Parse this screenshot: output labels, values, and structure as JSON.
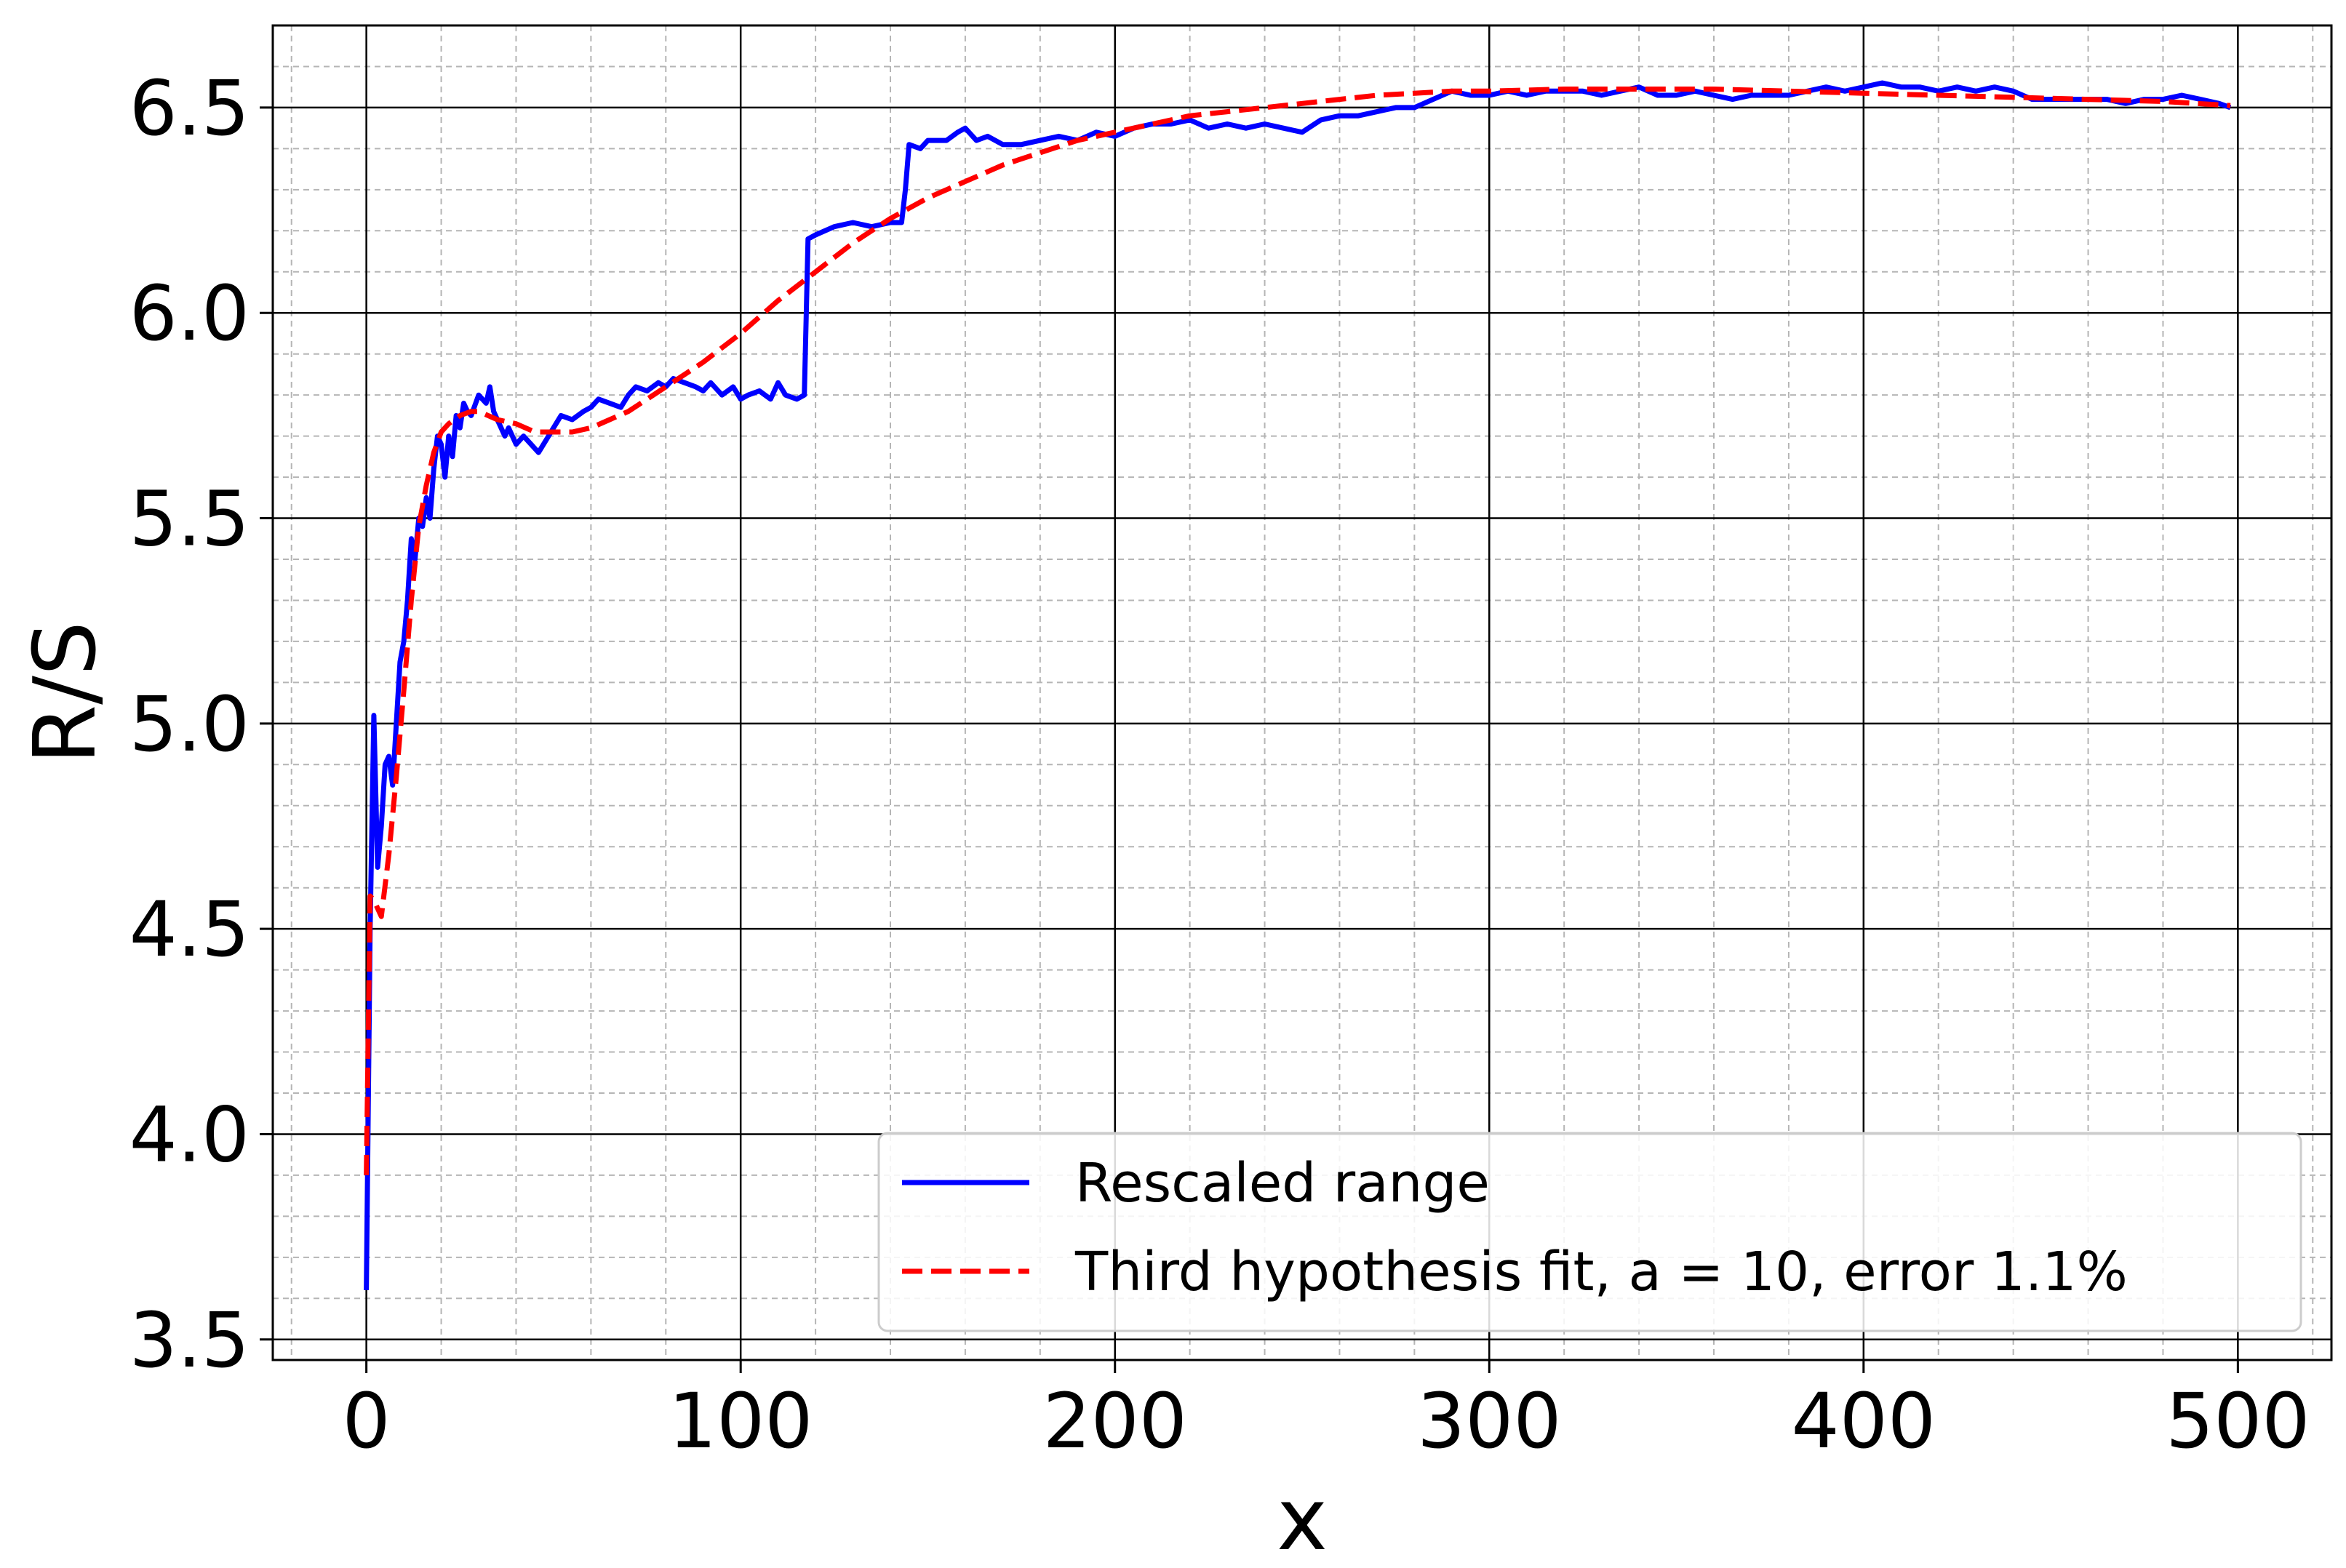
{
  "chart_data": {
    "type": "line",
    "xlabel": "x",
    "ylabel": "R/S",
    "xlim": [
      -25,
      525
    ],
    "ylim": [
      3.45,
      6.7
    ],
    "xticks": [
      0,
      100,
      200,
      300,
      400,
      500
    ],
    "xtick_labels": [
      "0",
      "100",
      "200",
      "300",
      "400",
      "500"
    ],
    "yticks": [
      3.5,
      4.0,
      4.5,
      5.0,
      5.5,
      6.0,
      6.5
    ],
    "ytick_labels": [
      "3.5",
      "4.0",
      "4.5",
      "5.0",
      "5.5",
      "6.0",
      "6.5"
    ],
    "grid": {
      "major": true,
      "minor": true
    },
    "legend_position": "lower-right",
    "series": [
      {
        "name": "Rescaled range",
        "color": "#0000ff",
        "style": "solid",
        "x": [
          0,
          1,
          2,
          3,
          4,
          5,
          6,
          7,
          8,
          9,
          10,
          11,
          12,
          13,
          14,
          15,
          16,
          17,
          18,
          19,
          20,
          21,
          22,
          23,
          24,
          25,
          26,
          27,
          28,
          30,
          32,
          33,
          34,
          35,
          37,
          38,
          40,
          42,
          44,
          46,
          48,
          50,
          52,
          55,
          58,
          60,
          62,
          65,
          68,
          70,
          72,
          75,
          78,
          80,
          82,
          85,
          88,
          90,
          92,
          95,
          98,
          100,
          102,
          105,
          108,
          110,
          112,
          115,
          117,
          118,
          120,
          125,
          130,
          135,
          140,
          143,
          144,
          145,
          148,
          150,
          155,
          158,
          160,
          163,
          166,
          170,
          175,
          180,
          185,
          190,
          195,
          200,
          205,
          210,
          215,
          220,
          225,
          230,
          235,
          240,
          245,
          250,
          255,
          260,
          265,
          270,
          275,
          280,
          285,
          290,
          295,
          300,
          305,
          310,
          315,
          320,
          325,
          330,
          335,
          340,
          345,
          350,
          355,
          360,
          365,
          370,
          375,
          380,
          385,
          390,
          395,
          400,
          405,
          410,
          415,
          420,
          425,
          430,
          435,
          440,
          445,
          450,
          455,
          460,
          465,
          470,
          475,
          480,
          485,
          490,
          495,
          498
        ],
        "y": [
          3.62,
          4.5,
          5.02,
          4.65,
          4.75,
          4.9,
          4.92,
          4.85,
          5.0,
          5.15,
          5.2,
          5.3,
          5.45,
          5.4,
          5.5,
          5.48,
          5.55,
          5.5,
          5.62,
          5.7,
          5.68,
          5.6,
          5.7,
          5.65,
          5.75,
          5.72,
          5.78,
          5.76,
          5.75,
          5.8,
          5.78,
          5.82,
          5.76,
          5.74,
          5.7,
          5.72,
          5.68,
          5.7,
          5.68,
          5.66,
          5.69,
          5.72,
          5.75,
          5.74,
          5.76,
          5.77,
          5.79,
          5.78,
          5.77,
          5.8,
          5.82,
          5.81,
          5.83,
          5.82,
          5.84,
          5.83,
          5.82,
          5.81,
          5.83,
          5.8,
          5.82,
          5.79,
          5.8,
          5.81,
          5.79,
          5.83,
          5.8,
          5.79,
          5.8,
          6.18,
          6.19,
          6.21,
          6.22,
          6.21,
          6.22,
          6.22,
          6.3,
          6.41,
          6.4,
          6.42,
          6.42,
          6.44,
          6.45,
          6.42,
          6.43,
          6.41,
          6.41,
          6.42,
          6.43,
          6.42,
          6.44,
          6.43,
          6.45,
          6.46,
          6.46,
          6.47,
          6.45,
          6.46,
          6.45,
          6.46,
          6.45,
          6.44,
          6.47,
          6.48,
          6.48,
          6.49,
          6.5,
          6.5,
          6.52,
          6.54,
          6.53,
          6.53,
          6.54,
          6.53,
          6.54,
          6.54,
          6.54,
          6.53,
          6.54,
          6.55,
          6.53,
          6.53,
          6.54,
          6.53,
          6.52,
          6.53,
          6.53,
          6.53,
          6.54,
          6.55,
          6.54,
          6.55,
          6.56,
          6.55,
          6.55,
          6.54,
          6.55,
          6.54,
          6.55,
          6.54,
          6.52,
          6.52,
          6.52,
          6.52,
          6.52,
          6.51,
          6.52,
          6.52,
          6.53,
          6.52,
          6.51,
          6.5
        ],
        "stroke": "#0000ff"
      },
      {
        "name": "Third hypothesis fit, a = 10, error 1.1%",
        "color": "#ff0000",
        "style": "dashed",
        "x": [
          0,
          1,
          2,
          4,
          6,
          8,
          10,
          12,
          14,
          16,
          18,
          20,
          22,
          25,
          28,
          30,
          35,
          40,
          45,
          50,
          55,
          60,
          65,
          70,
          80,
          90,
          100,
          110,
          120,
          130,
          140,
          150,
          160,
          170,
          180,
          190,
          200,
          210,
          220,
          230,
          240,
          250,
          260,
          270,
          280,
          290,
          300,
          320,
          340,
          360,
          380,
          400,
          420,
          440,
          460,
          480,
          498
        ],
        "y": [
          3.9,
          4.58,
          4.57,
          4.53,
          4.68,
          4.87,
          5.08,
          5.3,
          5.48,
          5.58,
          5.66,
          5.71,
          5.73,
          5.75,
          5.76,
          5.76,
          5.74,
          5.73,
          5.71,
          5.71,
          5.71,
          5.72,
          5.74,
          5.76,
          5.82,
          5.88,
          5.95,
          6.03,
          6.1,
          6.17,
          6.23,
          6.28,
          6.32,
          6.36,
          6.39,
          6.42,
          6.44,
          6.46,
          6.48,
          6.49,
          6.5,
          6.51,
          6.52,
          6.53,
          6.535,
          6.54,
          6.54,
          6.545,
          6.545,
          6.545,
          6.54,
          6.535,
          6.53,
          6.525,
          6.52,
          6.515,
          6.505
        ],
        "stroke": "#ff0000"
      }
    ]
  }
}
